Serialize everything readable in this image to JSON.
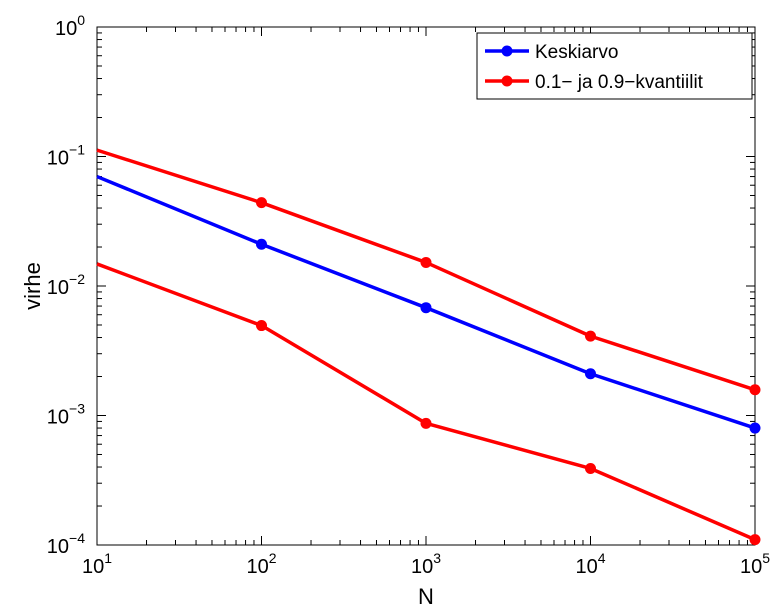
{
  "chart_data": {
    "type": "line",
    "title": "",
    "xlabel": "N",
    "ylabel": "virhe",
    "x_scale": "log",
    "y_scale": "log",
    "xlim": [
      10,
      100000
    ],
    "ylim": [
      0.0001,
      1
    ],
    "grid": false,
    "legend_position": "top-right",
    "x_ticks": [
      {
        "base": "10",
        "exp": "1",
        "value": 10
      },
      {
        "base": "10",
        "exp": "2",
        "value": 100
      },
      {
        "base": "10",
        "exp": "3",
        "value": 1000
      },
      {
        "base": "10",
        "exp": "4",
        "value": 10000
      },
      {
        "base": "10",
        "exp": "5",
        "value": 100000
      }
    ],
    "y_ticks": [
      {
        "base": "10",
        "exp": "0",
        "value": 1
      },
      {
        "base": "10",
        "exp": "−1",
        "value": 0.1
      },
      {
        "base": "10",
        "exp": "−2",
        "value": 0.01
      },
      {
        "base": "10",
        "exp": "−3",
        "value": 0.001
      },
      {
        "base": "10",
        "exp": "−4",
        "value": 0.0001
      }
    ],
    "x": [
      10,
      100,
      1000,
      10000,
      100000
    ],
    "series": [
      {
        "name": "Keskiarvo",
        "color": "#0000ff",
        "legend": true,
        "values": [
          0.07,
          0.021,
          0.0068,
          0.0021,
          0.0008
        ]
      },
      {
        "name": "0.1− ja 0.9−kvantiilit",
        "color": "#ff0000",
        "legend": true,
        "values": [
          0.112,
          0.044,
          0.0152,
          0.0041,
          0.00158
        ]
      },
      {
        "color": "#ff0000",
        "legend": false,
        "values": [
          0.0148,
          0.00495,
          0.00087,
          0.00039,
          0.00011
        ]
      }
    ]
  }
}
